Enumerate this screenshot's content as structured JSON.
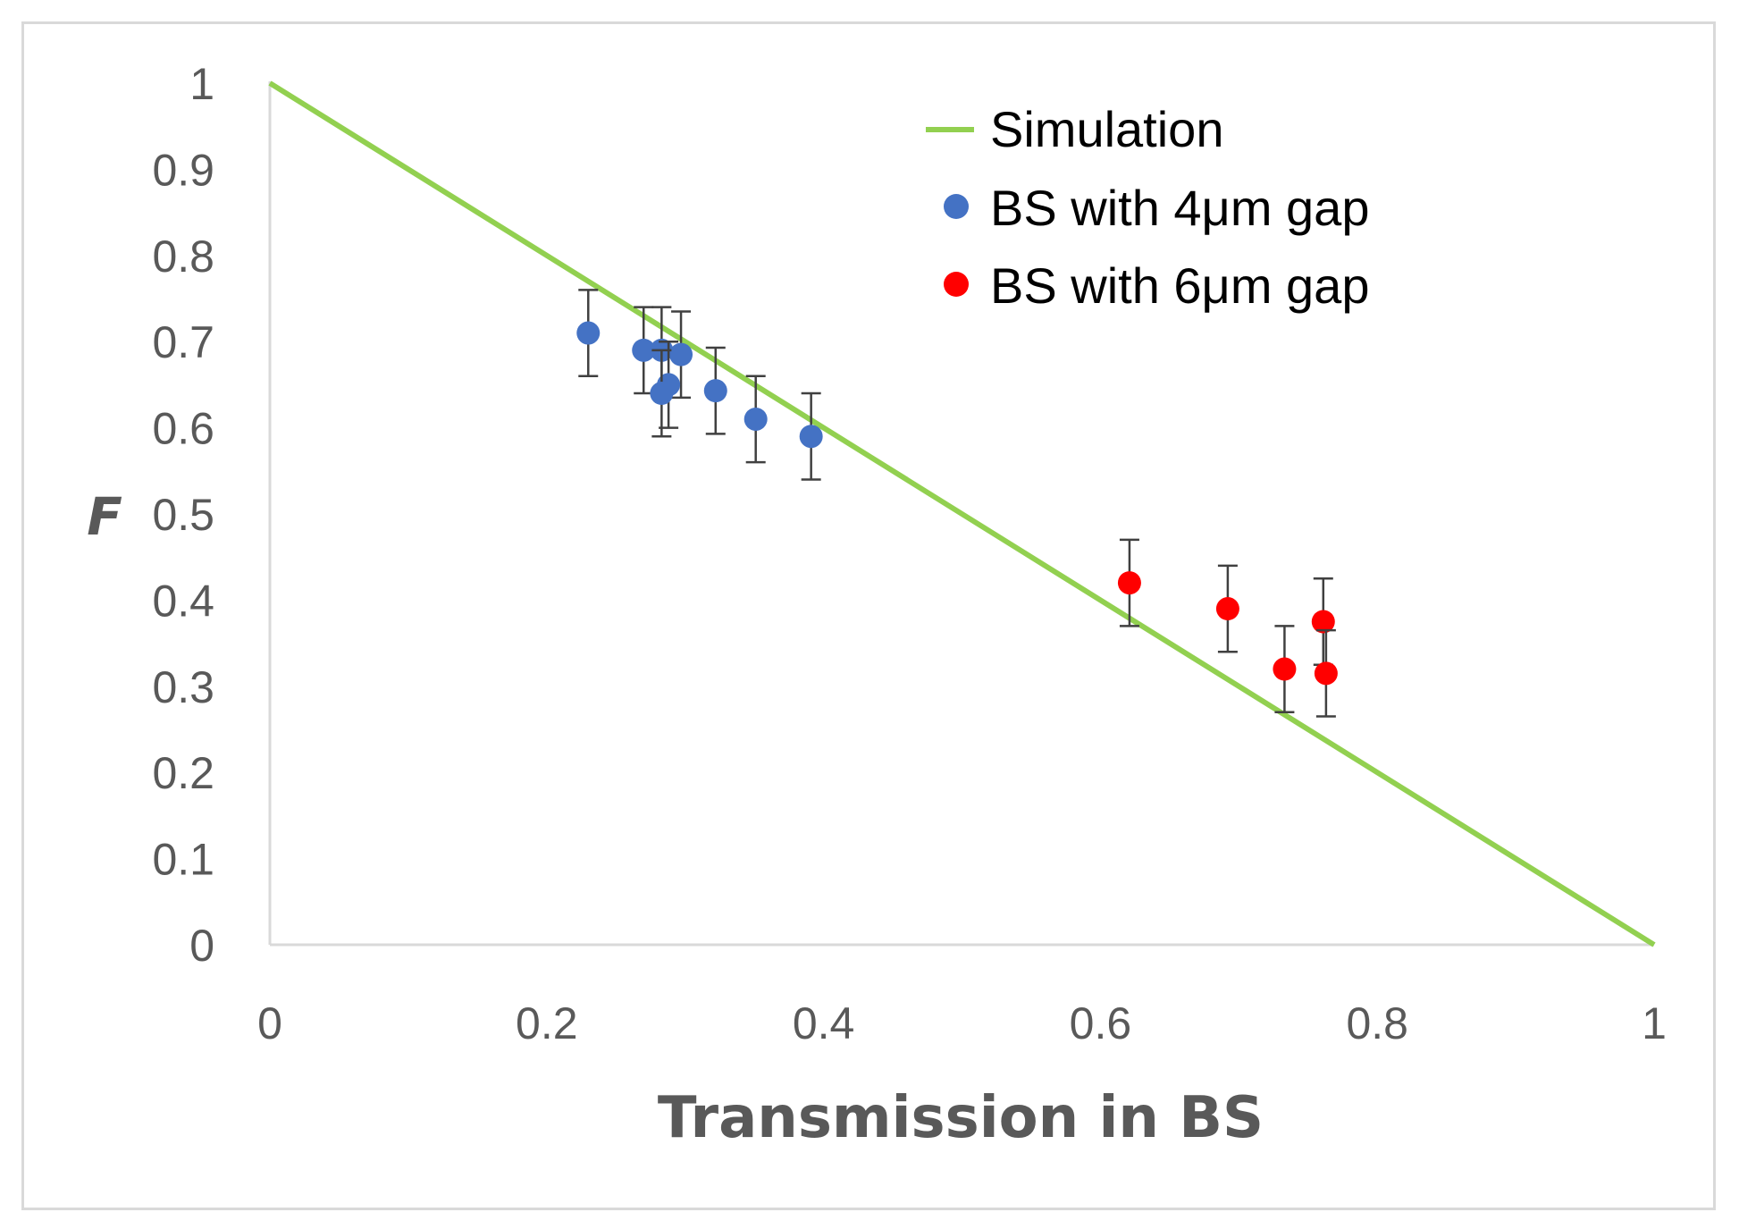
{
  "chart_data": {
    "type": "scatter",
    "title": "",
    "xlabel": "Transmission in BS",
    "ylabel": "F",
    "xlim": [
      0,
      1
    ],
    "ylim": [
      0,
      1
    ],
    "x_ticks": [
      "0",
      "0.2",
      "0.4",
      "0.6",
      "0.8",
      "1"
    ],
    "y_ticks": [
      "0",
      "0.1",
      "0.2",
      "0.3",
      "0.4",
      "0.5",
      "0.6",
      "0.7",
      "0.8",
      "0.9",
      "1"
    ],
    "grid": false,
    "legend_position": "top-right",
    "series": [
      {
        "name": "Simulation",
        "kind": "line",
        "color": "#92d050",
        "points": [
          [
            0,
            1
          ],
          [
            1,
            0
          ]
        ]
      },
      {
        "name": "BS with 4μm gap",
        "kind": "scatter",
        "color": "#4472c4",
        "error": 0.05,
        "points": [
          [
            0.23,
            0.71
          ],
          [
            0.27,
            0.69
          ],
          [
            0.283,
            0.69
          ],
          [
            0.297,
            0.685
          ],
          [
            0.288,
            0.65
          ],
          [
            0.283,
            0.64
          ],
          [
            0.322,
            0.643
          ],
          [
            0.351,
            0.61
          ],
          [
            0.391,
            0.59
          ]
        ]
      },
      {
        "name": "BS with 6μm gap",
        "kind": "scatter",
        "color": "#ff0000",
        "error": 0.05,
        "points": [
          [
            0.621,
            0.42
          ],
          [
            0.692,
            0.39
          ],
          [
            0.733,
            0.32
          ],
          [
            0.761,
            0.375
          ],
          [
            0.763,
            0.315
          ]
        ]
      }
    ]
  }
}
